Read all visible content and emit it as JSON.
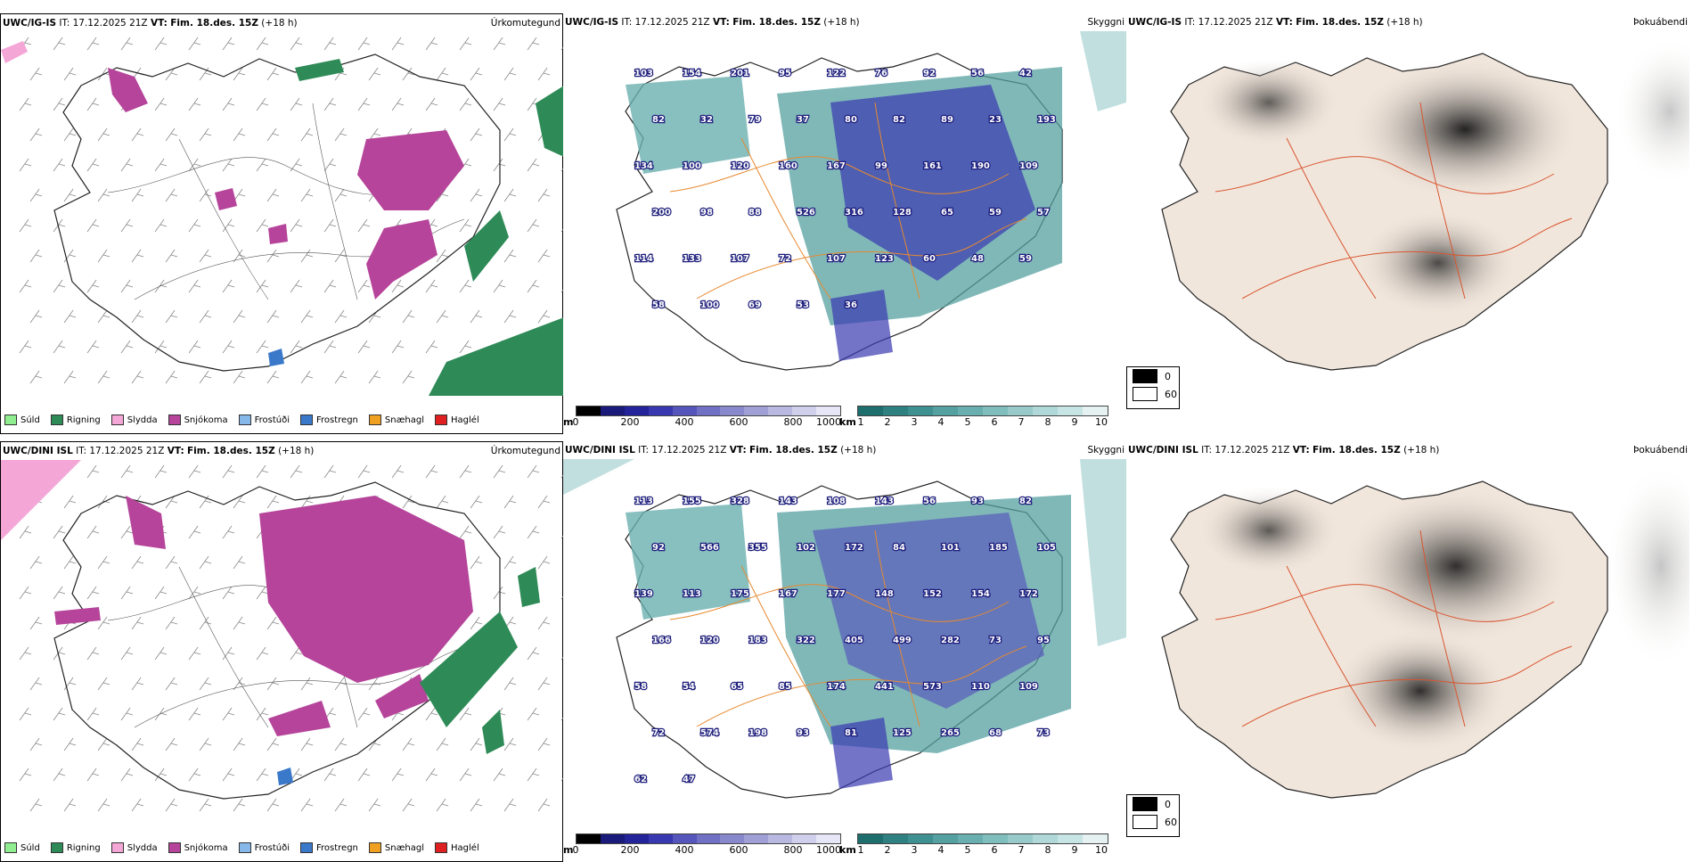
{
  "rows": [
    {
      "source": "UWC/IG-IS",
      "it_label": "IT:",
      "it_value": "17.12.2025 21Z",
      "vt_label": "VT:",
      "vt_value": "Fim. 18.des. 15Z",
      "lead": "(+18 h)",
      "titles": [
        "Úrkomutegund",
        "Skyggni",
        "Þokuábendi"
      ],
      "visibility_labels": [
        {
          "text": "103"
        },
        {
          "text": "154"
        },
        {
          "text": "201"
        },
        {
          "text": "95"
        },
        {
          "text": "122"
        },
        {
          "text": "76"
        },
        {
          "text": "92"
        },
        {
          "text": "56"
        },
        {
          "text": "42"
        },
        {
          "text": "82"
        },
        {
          "text": "32"
        },
        {
          "text": "79"
        },
        {
          "text": "37"
        },
        {
          "text": "80"
        },
        {
          "text": "82"
        },
        {
          "text": "89"
        },
        {
          "text": "23"
        },
        {
          "text": "193"
        },
        {
          "text": "134"
        },
        {
          "text": "100"
        },
        {
          "text": "120"
        },
        {
          "text": "160"
        },
        {
          "text": "167"
        },
        {
          "text": "99"
        },
        {
          "text": "161"
        },
        {
          "text": "190"
        },
        {
          "text": "109"
        },
        {
          "text": "200"
        },
        {
          "text": "98"
        },
        {
          "text": "88"
        },
        {
          "text": "526"
        },
        {
          "text": "316"
        },
        {
          "text": "128"
        },
        {
          "text": "65"
        },
        {
          "text": "59"
        },
        {
          "text": "57"
        },
        {
          "text": "114"
        },
        {
          "text": "133"
        },
        {
          "text": "107"
        },
        {
          "text": "72"
        },
        {
          "text": "107"
        },
        {
          "text": "123"
        },
        {
          "text": "60"
        },
        {
          "text": "48"
        },
        {
          "text": "59"
        },
        {
          "text": "58"
        },
        {
          "text": "100"
        },
        {
          "text": "69"
        },
        {
          "text": "53"
        },
        {
          "text": "36"
        }
      ]
    },
    {
      "source": "UWC/DINI ISL",
      "it_label": "IT:",
      "it_value": "17.12.2025 21Z",
      "vt_label": "VT:",
      "vt_value": "Fim. 18.des. 15Z",
      "lead": "(+18 h)",
      "titles": [
        "Úrkomutegund",
        "Skyggni",
        "Þokuábendi"
      ],
      "visibility_labels": [
        {
          "text": "113"
        },
        {
          "text": "155"
        },
        {
          "text": "328"
        },
        {
          "text": "143"
        },
        {
          "text": "108"
        },
        {
          "text": "143"
        },
        {
          "text": "56"
        },
        {
          "text": "93"
        },
        {
          "text": "82"
        },
        {
          "text": "92"
        },
        {
          "text": "566"
        },
        {
          "text": "355"
        },
        {
          "text": "102"
        },
        {
          "text": "172"
        },
        {
          "text": "84"
        },
        {
          "text": "101"
        },
        {
          "text": "185"
        },
        {
          "text": "105"
        },
        {
          "text": "139"
        },
        {
          "text": "113"
        },
        {
          "text": "175"
        },
        {
          "text": "167"
        },
        {
          "text": "177"
        },
        {
          "text": "148"
        },
        {
          "text": "152"
        },
        {
          "text": "154"
        },
        {
          "text": "172"
        },
        {
          "text": "166"
        },
        {
          "text": "120"
        },
        {
          "text": "183"
        },
        {
          "text": "322"
        },
        {
          "text": "405"
        },
        {
          "text": "499"
        },
        {
          "text": "282"
        },
        {
          "text": "73"
        },
        {
          "text": "95"
        },
        {
          "text": "58"
        },
        {
          "text": "54"
        },
        {
          "text": "65"
        },
        {
          "text": "85"
        },
        {
          "text": "174"
        },
        {
          "text": "441"
        },
        {
          "text": "573"
        },
        {
          "text": "110"
        },
        {
          "text": "109"
        },
        {
          "text": "72"
        },
        {
          "text": "574"
        },
        {
          "text": "198"
        },
        {
          "text": "93"
        },
        {
          "text": "81"
        },
        {
          "text": "125"
        },
        {
          "text": "265"
        },
        {
          "text": "68"
        },
        {
          "text": "73"
        },
        {
          "text": "62"
        },
        {
          "text": "47"
        }
      ]
    }
  ],
  "precip_legend": [
    {
      "label": "Súld",
      "color": "#90ee90"
    },
    {
      "label": "Rigning",
      "color": "#2e8b57"
    },
    {
      "label": "Slydda",
      "color": "#f4a6d7"
    },
    {
      "label": "Snjókoma",
      "color": "#b5449a"
    },
    {
      "label": "Frostúði",
      "color": "#87b8ea"
    },
    {
      "label": "Frostregn",
      "color": "#3a78c9"
    },
    {
      "label": "Snæhagl",
      "color": "#f0a020"
    },
    {
      "label": "Haglél",
      "color": "#e02020"
    }
  ],
  "ceiling_bar": {
    "unit": "m",
    "ticks": [
      "0",
      "200",
      "400",
      "600",
      "800",
      "1000"
    ],
    "colors": [
      "#000000",
      "#1a1a7a",
      "#23239a",
      "#3838b0",
      "#5555bb",
      "#7070c4",
      "#8888cc",
      "#a0a0d6",
      "#b8b8e0",
      "#d0d0ec",
      "#e6e6f6"
    ]
  },
  "visibility_bar": {
    "unit": "km",
    "ticks": [
      "1",
      "2",
      "3",
      "4",
      "5",
      "6",
      "7",
      "8",
      "9",
      "10"
    ],
    "colors": [
      "#1e6e6e",
      "#2f8080",
      "#3f9090",
      "#55a0a0",
      "#6aafaf",
      "#80bdbd",
      "#98caca",
      "#b0d8d8",
      "#c8e5e5",
      "#e6f2f2"
    ]
  },
  "fog_legend": {
    "top": "0",
    "bottom": "60"
  }
}
